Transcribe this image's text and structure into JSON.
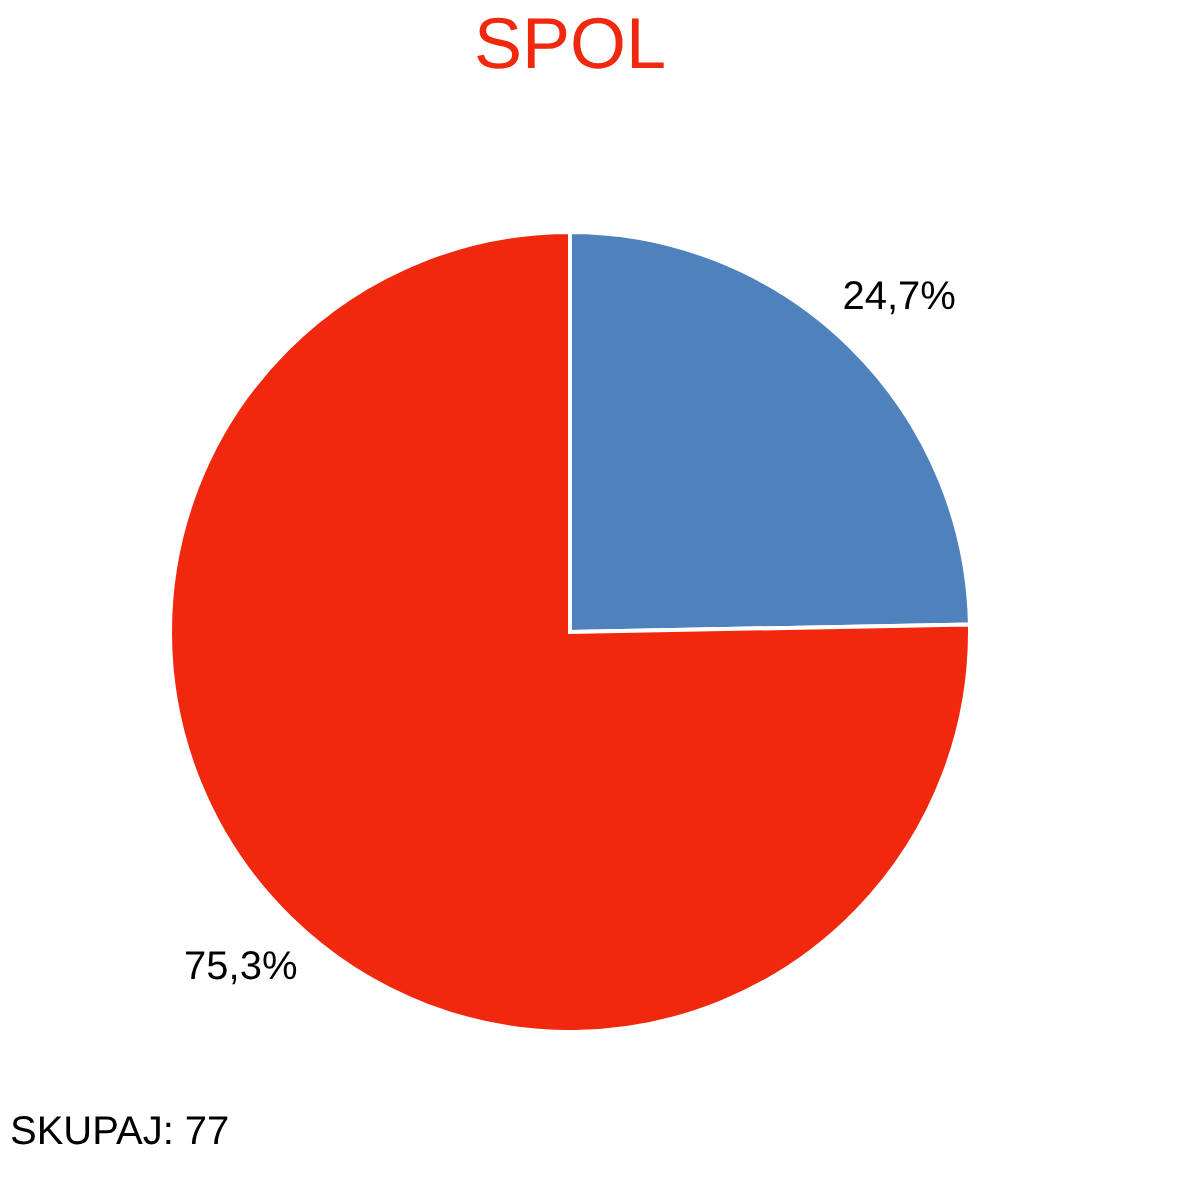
{
  "chart_data": {
    "type": "pie",
    "title": "SPOL",
    "categories": [
      null,
      null
    ],
    "values": [
      24.7,
      75.3
    ],
    "colors": [
      "#4f81bd",
      "#f0280e"
    ],
    "value_labels": [
      "24,7%",
      "75,3%"
    ],
    "annotations": [
      "SKUPAJ: 77"
    ],
    "legend": false
  }
}
